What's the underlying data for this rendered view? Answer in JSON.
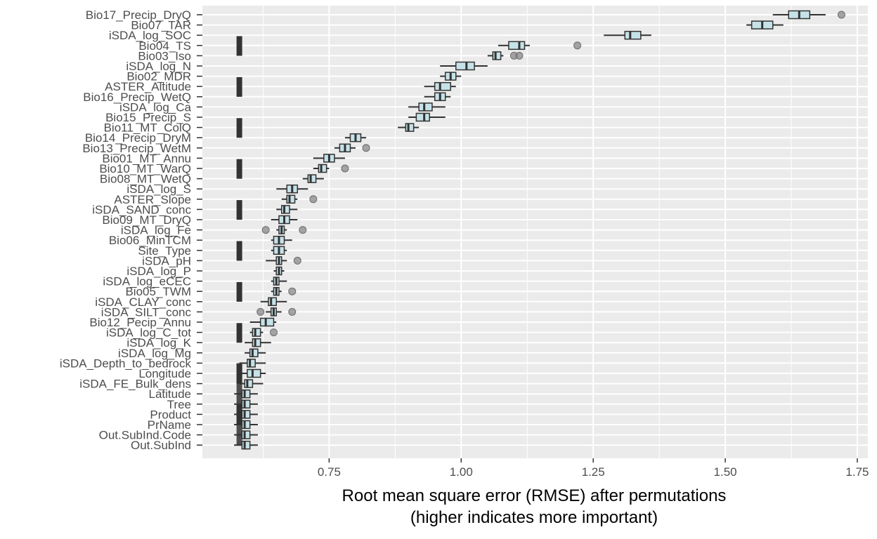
{
  "chart_data": {
    "type": "boxplot",
    "title": "",
    "xlabel": "Root mean square error (RMSE) after permutations",
    "xlabel_line2": "(higher indicates more important)",
    "ylabel": "",
    "xlim": [
      0.51,
      1.77
    ],
    "x_ticks": [
      0.75,
      1.0,
      1.25,
      1.5,
      1.75
    ],
    "x_tick_labels": [
      "0.75",
      "1.00",
      "1.25",
      "1.50",
      "1.75"
    ],
    "baseline_rmse": 0.58,
    "grid": true,
    "colors": {
      "panel": "#ebebeb",
      "grid": "#ffffff",
      "box_fill": "#c6e2e9",
      "box_stroke": "#333333",
      "outlier": "#808080",
      "baseline": "#333333"
    },
    "variables": [
      {
        "name": "Bio17_Precip_DryQ",
        "min": 1.59,
        "q1": 1.62,
        "median": 1.64,
        "q3": 1.66,
        "max": 1.69,
        "outliers": [
          1.72
        ]
      },
      {
        "name": "Bio07_TAR",
        "min": 1.54,
        "q1": 1.55,
        "median": 1.57,
        "q3": 1.59,
        "max": 1.61,
        "outliers": []
      },
      {
        "name": "iSDA_log_SOC",
        "min": 1.27,
        "q1": 1.31,
        "median": 1.32,
        "q3": 1.34,
        "max": 1.36,
        "outliers": []
      },
      {
        "name": "Bio04_TS",
        "min": 1.07,
        "q1": 1.09,
        "median": 1.11,
        "q3": 1.12,
        "max": 1.13,
        "outliers": [
          1.22
        ]
      },
      {
        "name": "Bio03_Iso",
        "min": 1.05,
        "q1": 1.06,
        "median": 1.065,
        "q3": 1.075,
        "max": 1.08,
        "outliers": [
          1.1,
          1.11
        ]
      },
      {
        "name": "iSDA_log_N",
        "min": 0.96,
        "q1": 0.99,
        "median": 1.01,
        "q3": 1.025,
        "max": 1.05,
        "outliers": []
      },
      {
        "name": "Bio02_MDR",
        "min": 0.96,
        "q1": 0.97,
        "median": 0.98,
        "q3": 0.99,
        "max": 1.0,
        "outliers": []
      },
      {
        "name": "ASTER_Altitude",
        "min": 0.93,
        "q1": 0.95,
        "median": 0.96,
        "q3": 0.98,
        "max": 0.99,
        "outliers": []
      },
      {
        "name": "Bio16_Precip_WetQ",
        "min": 0.93,
        "q1": 0.95,
        "median": 0.96,
        "q3": 0.97,
        "max": 0.98,
        "outliers": []
      },
      {
        "name": "iSDA_log_Ca",
        "min": 0.9,
        "q1": 0.92,
        "median": 0.93,
        "q3": 0.945,
        "max": 0.97,
        "outliers": []
      },
      {
        "name": "Bio15_Precip_S",
        "min": 0.9,
        "q1": 0.915,
        "median": 0.93,
        "q3": 0.94,
        "max": 0.97,
        "outliers": []
      },
      {
        "name": "Bio11_MT_ColQ",
        "min": 0.88,
        "q1": 0.895,
        "median": 0.9,
        "q3": 0.91,
        "max": 0.92,
        "outliers": []
      },
      {
        "name": "Bio14_Precip_DryM",
        "min": 0.78,
        "q1": 0.79,
        "median": 0.8,
        "q3": 0.81,
        "max": 0.82,
        "outliers": []
      },
      {
        "name": "Bio13_Precip_WetM",
        "min": 0.76,
        "q1": 0.77,
        "median": 0.78,
        "q3": 0.79,
        "max": 0.8,
        "outliers": [
          0.82
        ]
      },
      {
        "name": "Bio01_MT_Annu",
        "min": 0.72,
        "q1": 0.74,
        "median": 0.75,
        "q3": 0.76,
        "max": 0.78,
        "outliers": []
      },
      {
        "name": "Bio10_MT_WarQ",
        "min": 0.72,
        "q1": 0.73,
        "median": 0.735,
        "q3": 0.745,
        "max": 0.75,
        "outliers": [
          0.78
        ]
      },
      {
        "name": "Bio08_MT_WetQ",
        "min": 0.7,
        "q1": 0.71,
        "median": 0.715,
        "q3": 0.725,
        "max": 0.74,
        "outliers": []
      },
      {
        "name": "iSDA_log_S",
        "min": 0.65,
        "q1": 0.67,
        "median": 0.68,
        "q3": 0.69,
        "max": 0.71,
        "outliers": []
      },
      {
        "name": "ASTER_Slope",
        "min": 0.66,
        "q1": 0.67,
        "median": 0.675,
        "q3": 0.685,
        "max": 0.69,
        "outliers": [
          0.72
        ]
      },
      {
        "name": "iSDA_SAND_conc",
        "min": 0.65,
        "q1": 0.66,
        "median": 0.665,
        "q3": 0.675,
        "max": 0.69,
        "outliers": []
      },
      {
        "name": "Bio09_MT_DryQ",
        "min": 0.64,
        "q1": 0.655,
        "median": 0.665,
        "q3": 0.675,
        "max": 0.69,
        "outliers": []
      },
      {
        "name": "iSDA_log_Fe",
        "min": 0.65,
        "q1": 0.655,
        "median": 0.66,
        "q3": 0.665,
        "max": 0.67,
        "outliers": [
          0.63,
          0.7
        ]
      },
      {
        "name": "Bio06_MinTCM",
        "min": 0.64,
        "q1": 0.645,
        "median": 0.655,
        "q3": 0.665,
        "max": 0.68,
        "outliers": []
      },
      {
        "name": "Site_Type",
        "min": 0.64,
        "q1": 0.645,
        "median": 0.655,
        "q3": 0.665,
        "max": 0.67,
        "outliers": []
      },
      {
        "name": "iSDA_pH",
        "min": 0.63,
        "q1": 0.65,
        "median": 0.655,
        "q3": 0.66,
        "max": 0.67,
        "outliers": [
          0.69
        ]
      },
      {
        "name": "iSDA_log_P",
        "min": 0.645,
        "q1": 0.65,
        "median": 0.655,
        "q3": 0.66,
        "max": 0.665,
        "outliers": []
      },
      {
        "name": "iSDA_log_eCEC",
        "min": 0.64,
        "q1": 0.645,
        "median": 0.65,
        "q3": 0.655,
        "max": 0.67,
        "outliers": []
      },
      {
        "name": "Bio05_TWM",
        "min": 0.64,
        "q1": 0.645,
        "median": 0.65,
        "q3": 0.655,
        "max": 0.66,
        "outliers": [
          0.68
        ]
      },
      {
        "name": "iSDA_CLAY_conc",
        "min": 0.62,
        "q1": 0.635,
        "median": 0.64,
        "q3": 0.65,
        "max": 0.67,
        "outliers": []
      },
      {
        "name": "iSDA_SILT_conc",
        "min": 0.63,
        "q1": 0.64,
        "median": 0.645,
        "q3": 0.65,
        "max": 0.66,
        "outliers": [
          0.62,
          0.68
        ]
      },
      {
        "name": "Bio12_Pecip_Annu",
        "min": 0.6,
        "q1": 0.62,
        "median": 0.63,
        "q3": 0.645,
        "max": 0.65,
        "outliers": []
      },
      {
        "name": "iSDA_log_C_tot",
        "min": 0.6,
        "q1": 0.605,
        "median": 0.61,
        "q3": 0.62,
        "max": 0.625,
        "outliers": [
          0.645
        ]
      },
      {
        "name": "iSDA_log_K",
        "min": 0.59,
        "q1": 0.605,
        "median": 0.61,
        "q3": 0.62,
        "max": 0.64,
        "outliers": []
      },
      {
        "name": "iSDA_log_Mg",
        "min": 0.59,
        "q1": 0.6,
        "median": 0.605,
        "q3": 0.615,
        "max": 0.63,
        "outliers": []
      },
      {
        "name": "iSDA_Depth_to_bedrock",
        "min": 0.58,
        "q1": 0.595,
        "median": 0.6,
        "q3": 0.61,
        "max": 0.63,
        "outliers": []
      },
      {
        "name": "Longitude",
        "min": 0.58,
        "q1": 0.595,
        "median": 0.605,
        "q3": 0.62,
        "max": 0.63,
        "outliers": []
      },
      {
        "name": "iSDA_FE_Bulk_dens",
        "min": 0.58,
        "q1": 0.59,
        "median": 0.595,
        "q3": 0.605,
        "max": 0.625,
        "outliers": []
      },
      {
        "name": "Latitude",
        "min": 0.57,
        "q1": 0.585,
        "median": 0.59,
        "q3": 0.6,
        "max": 0.615,
        "outliers": []
      },
      {
        "name": "Tree",
        "min": 0.57,
        "q1": 0.585,
        "median": 0.59,
        "q3": 0.6,
        "max": 0.615,
        "outliers": []
      },
      {
        "name": "Product",
        "min": 0.57,
        "q1": 0.585,
        "median": 0.59,
        "q3": 0.6,
        "max": 0.615,
        "outliers": []
      },
      {
        "name": "PrName",
        "min": 0.57,
        "q1": 0.585,
        "median": 0.59,
        "q3": 0.6,
        "max": 0.615,
        "outliers": []
      },
      {
        "name": "Out.SubInd.Code",
        "min": 0.57,
        "q1": 0.585,
        "median": 0.59,
        "q3": 0.6,
        "max": 0.615,
        "outliers": []
      },
      {
        "name": "Out.SubInd",
        "min": 0.57,
        "q1": 0.585,
        "median": 0.59,
        "q3": 0.6,
        "max": 0.615,
        "outliers": []
      }
    ]
  }
}
